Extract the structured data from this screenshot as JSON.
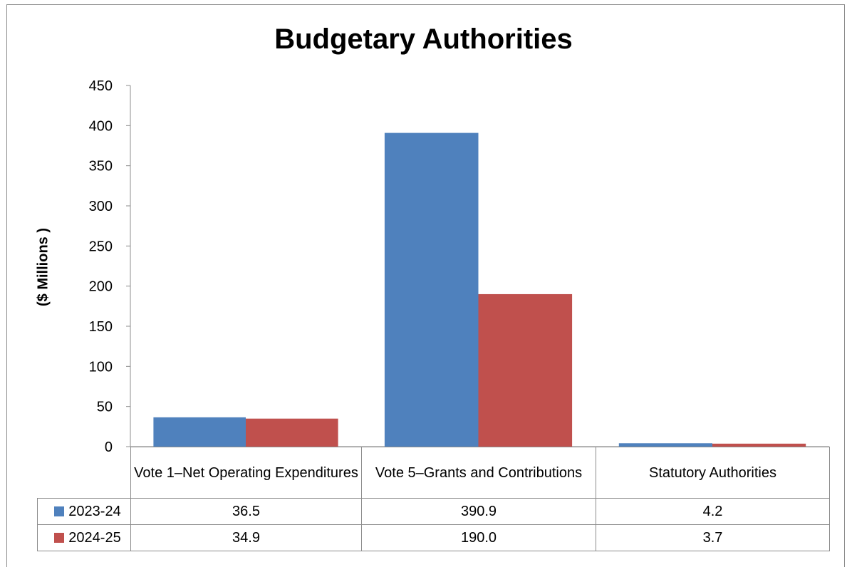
{
  "chart_data": {
    "type": "bar",
    "title": "Budgetary Authorities",
    "ylabel": "($ Millions )",
    "xlabel": "",
    "ylim": [
      0,
      450
    ],
    "yticks": [
      0,
      50,
      100,
      150,
      200,
      250,
      300,
      350,
      400,
      450
    ],
    "categories": [
      "Vote 1–Net Operating Expenditures",
      "Vote 5–Grants and Contributions",
      "Statutory Authorities"
    ],
    "series": [
      {
        "name": "2023-24",
        "color": "#4f81bd",
        "values": [
          36.5,
          390.9,
          4.2
        ],
        "labels": [
          "36.5",
          "390.9",
          "4.2"
        ]
      },
      {
        "name": "2024-25",
        "color": "#c0504d",
        "values": [
          34.9,
          190.0,
          3.7
        ],
        "labels": [
          "34.9",
          "190.0",
          "3.7"
        ]
      }
    ],
    "data_table": true,
    "grid": false,
    "legend": "data-table"
  }
}
